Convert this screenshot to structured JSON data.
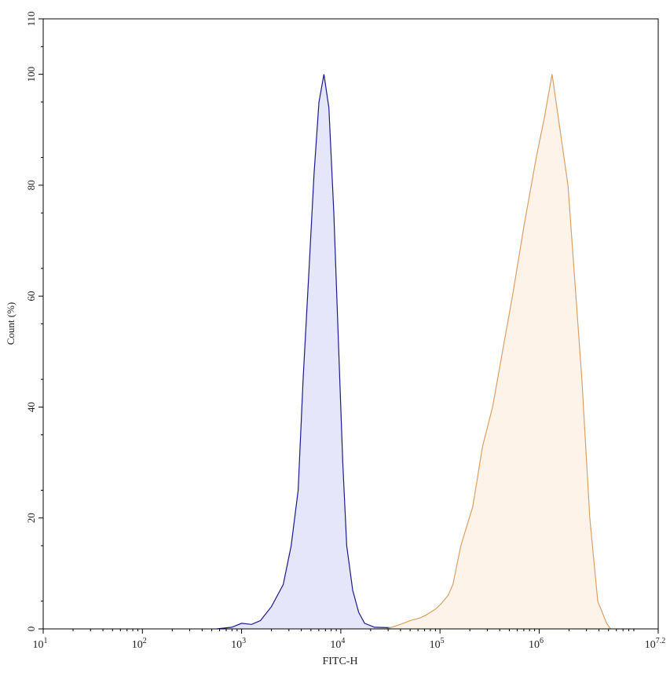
{
  "chart_data": {
    "type": "area",
    "xlabel": "FITC-H",
    "ylabel": "Count (%)",
    "x_scale": "log10",
    "xlim_exponent": [
      1,
      7.2
    ],
    "ylim": [
      0,
      110
    ],
    "x_ticks": [
      {
        "base": "10",
        "exp": "1",
        "value": 1
      },
      {
        "base": "10",
        "exp": "2",
        "value": 2
      },
      {
        "base": "10",
        "exp": "3",
        "value": 3
      },
      {
        "base": "10",
        "exp": "4",
        "value": 4
      },
      {
        "base": "10",
        "exp": "5",
        "value": 5
      },
      {
        "base": "10",
        "exp": "6",
        "value": 6
      },
      {
        "base": "10",
        "exp": "7.2",
        "value": 7.2
      }
    ],
    "y_ticks": [
      "0",
      "20",
      "40",
      "60",
      "80",
      "100",
      "110"
    ],
    "grid": false,
    "series": [
      {
        "color": "#1a1a8c",
        "fill": "#e6e6fa",
        "log10_x": [
          2.75,
          2.9,
          3.0,
          3.1,
          3.19,
          3.3,
          3.42,
          3.5,
          3.57,
          3.62,
          3.68,
          3.73,
          3.78,
          3.83,
          3.88,
          3.93,
          3.98,
          4.02,
          4.06,
          4.12,
          4.18,
          4.24,
          4.34,
          4.54,
          5.0,
          5.33,
          5.5
        ],
        "y": [
          0,
          0.3,
          1,
          0.8,
          1.5,
          4,
          8,
          15,
          25,
          45,
          65,
          82,
          95,
          100,
          94,
          75,
          50,
          30,
          15,
          7,
          3,
          1,
          0.3,
          0.2,
          0.1,
          0.2,
          0
        ]
      },
      {
        "color": "#d9a066",
        "fill": "#fdf3e8",
        "log10_x": [
          4.46,
          4.6,
          4.7,
          4.8,
          4.86,
          4.95,
          5.01,
          5.08,
          5.13,
          5.21,
          5.33,
          5.43,
          5.53,
          5.63,
          5.73,
          5.85,
          5.97,
          6.05,
          6.13,
          6.21,
          6.29,
          6.35,
          6.43,
          6.51,
          6.59,
          6.68,
          6.72
        ],
        "y": [
          0,
          0.8,
          1.5,
          2,
          2.5,
          3.5,
          4.5,
          6,
          8,
          15,
          22,
          33,
          40,
          50,
          60,
          73,
          85,
          92,
          100,
          90,
          80,
          65,
          45,
          20,
          5,
          1,
          0
        ]
      }
    ]
  }
}
